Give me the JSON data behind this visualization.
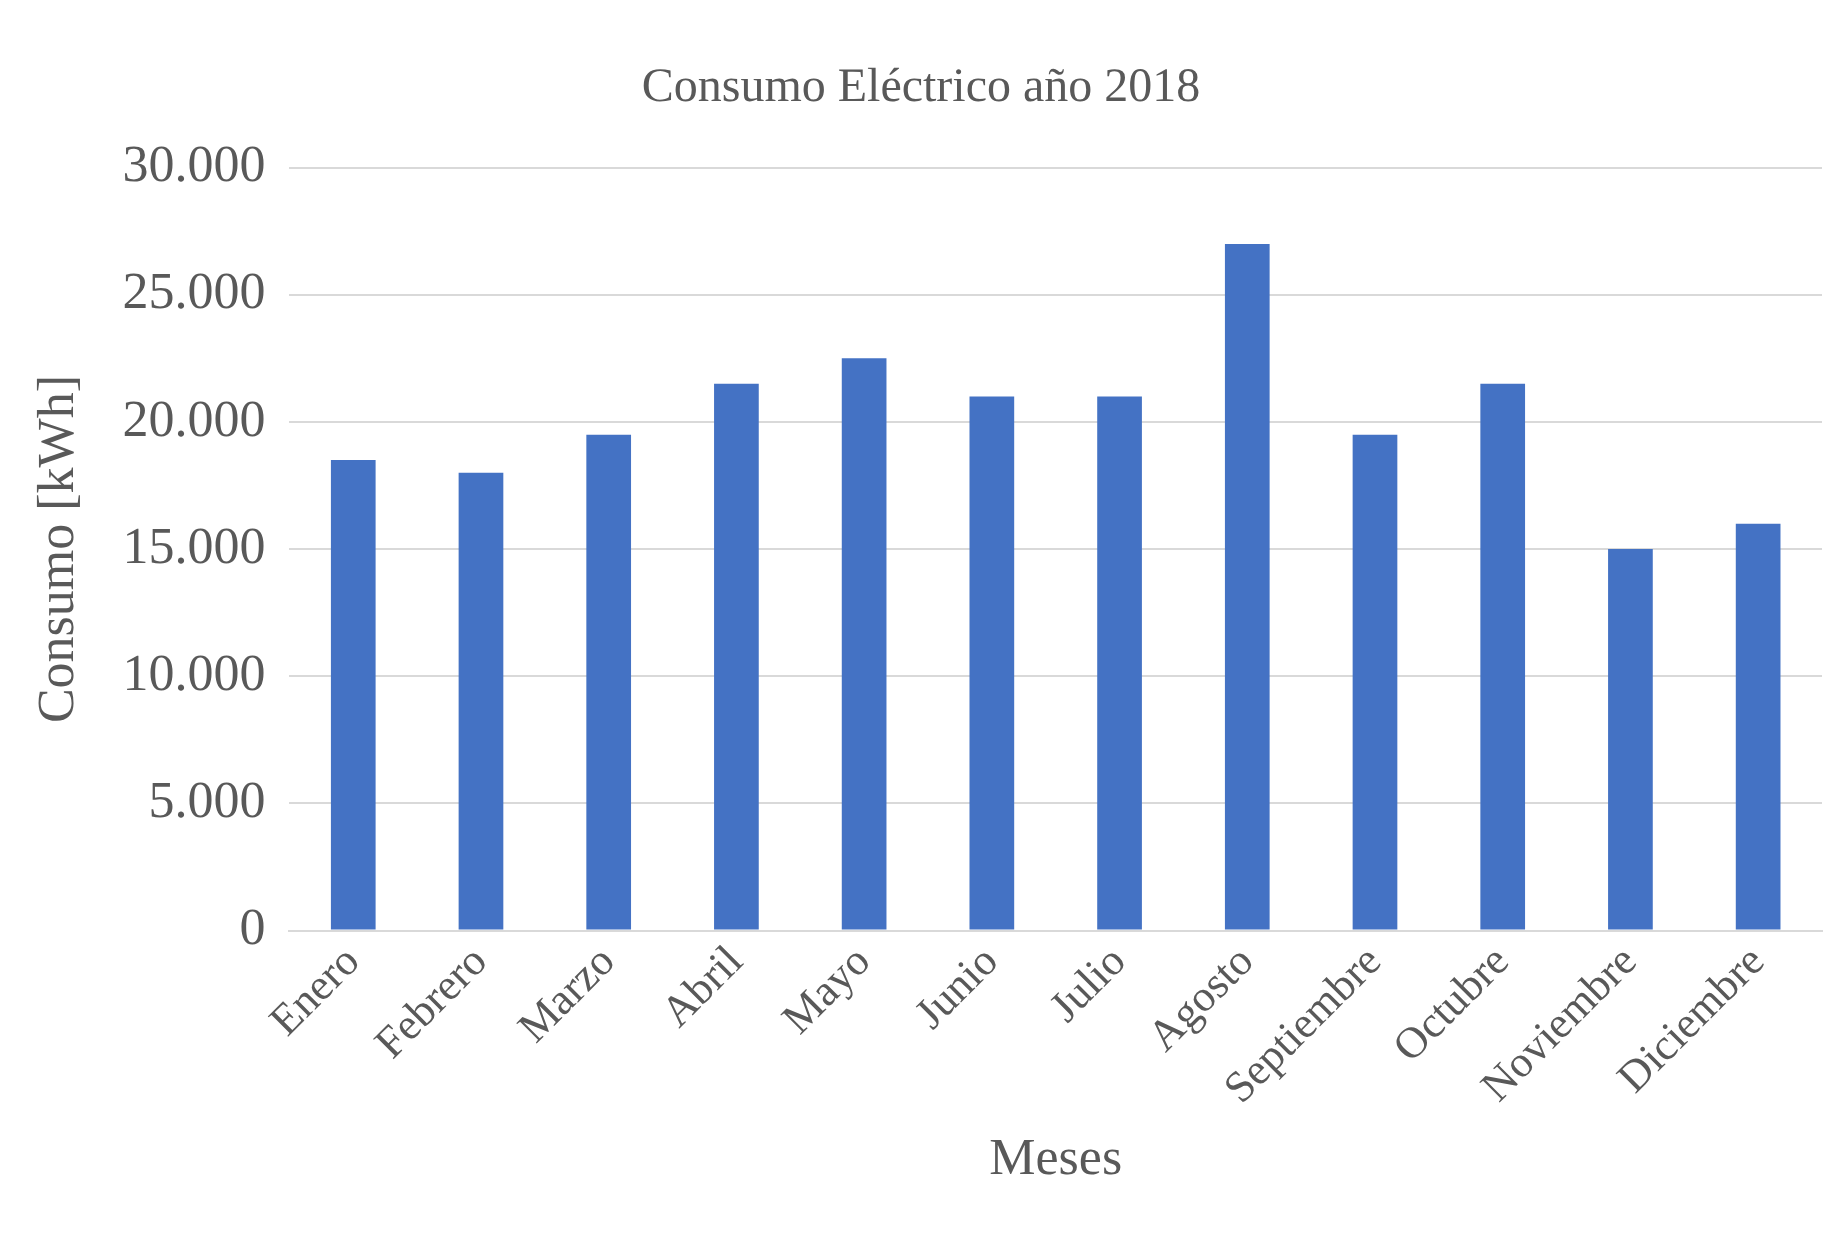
{
  "chart_data": {
    "type": "bar",
    "title": "Consumo Eléctrico año 2018",
    "xlabel": "Meses",
    "ylabel": "Consumo [kWh]",
    "categories": [
      "Enero",
      "Febrero",
      "Marzo",
      "Abril",
      "Mayo",
      "Junio",
      "Julio",
      "Agosto",
      "Septiembre",
      "Octubre",
      "Noviembre",
      "Diciembre"
    ],
    "values": [
      18500,
      18000,
      19500,
      21500,
      22500,
      21000,
      21000,
      27000,
      19500,
      21500,
      15000,
      16000
    ],
    "color": "#4472c4",
    "ylim": [
      0,
      30000
    ],
    "yticks": [
      {
        "value": 0,
        "label": "0"
      },
      {
        "value": 5000,
        "label": "5.000"
      },
      {
        "value": 10000,
        "label": "10.000"
      },
      {
        "value": 15000,
        "label": "15.000"
      },
      {
        "value": 20000,
        "label": "20.000"
      },
      {
        "value": 25000,
        "label": "25.000"
      },
      {
        "value": 30000,
        "label": "30.000"
      }
    ],
    "grid": "y",
    "legend": false
  }
}
